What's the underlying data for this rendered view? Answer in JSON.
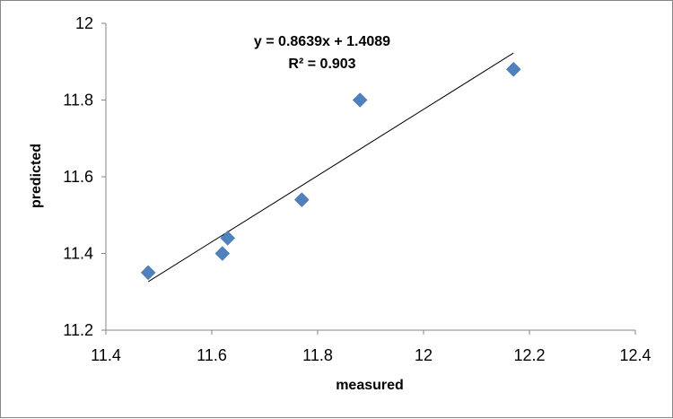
{
  "chart_data": {
    "type": "scatter",
    "title": "",
    "xlabel": "measured",
    "ylabel": "predicted",
    "xlim": [
      11.4,
      12.4
    ],
    "ylim": [
      11.2,
      12.0
    ],
    "x_ticks": [
      11.4,
      11.6,
      11.8,
      12.0,
      12.2,
      12.4
    ],
    "y_ticks": [
      11.2,
      11.4,
      11.6,
      11.8,
      12.0
    ],
    "x_tick_labels": [
      "11.4",
      "11.6",
      "11.8",
      "12",
      "12.2",
      "12.4"
    ],
    "y_tick_labels": [
      "11.2",
      "11.4",
      "11.6",
      "11.8",
      "12"
    ],
    "grid": false,
    "legend": "none",
    "series": [
      {
        "marker": "diamond",
        "color": "#4F81BD",
        "points": [
          {
            "x": 11.48,
            "y": 11.35
          },
          {
            "x": 11.62,
            "y": 11.4
          },
          {
            "x": 11.63,
            "y": 11.44
          },
          {
            "x": 11.77,
            "y": 11.54
          },
          {
            "x": 11.88,
            "y": 11.8
          },
          {
            "x": 12.17,
            "y": 11.88
          }
        ]
      }
    ],
    "trendline": {
      "type": "linear",
      "slope": 0.8639,
      "intercept": 1.4089,
      "x_range": [
        11.48,
        12.17
      ],
      "color": "#000000",
      "equation_label": "y = 0.8639x + 1.4089",
      "r2_label": "R² = 0.903"
    }
  }
}
